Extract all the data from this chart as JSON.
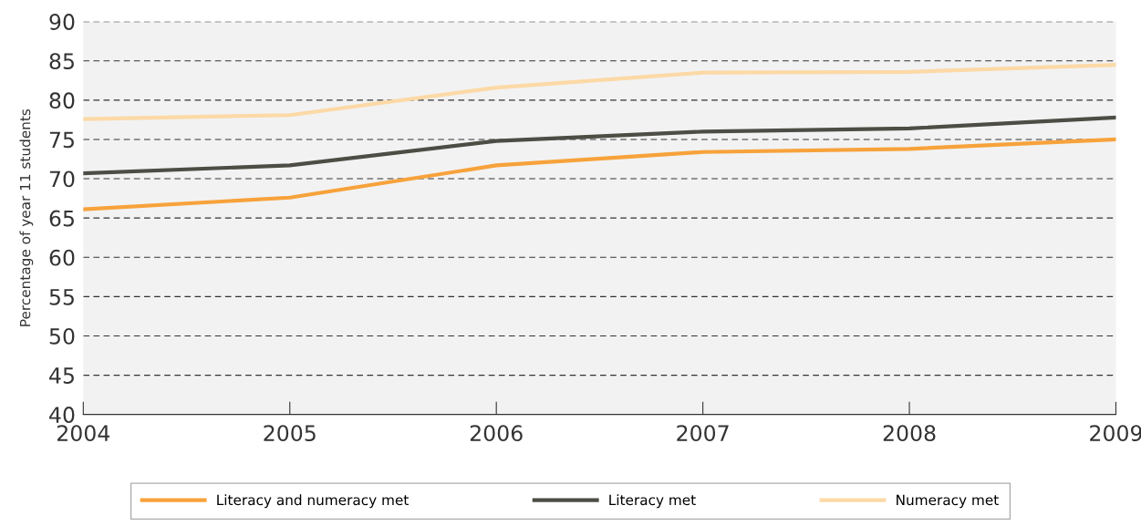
{
  "chart_data": {
    "type": "line",
    "ylabel": "Percentage of year 11 students",
    "x": [
      2004,
      2005,
      2006,
      2007,
      2008,
      2009
    ],
    "series": [
      {
        "name": "Literacy and numeracy met",
        "color": "#f7a23b",
        "values": [
          66.1,
          67.6,
          71.7,
          73.4,
          73.8,
          75.0
        ]
      },
      {
        "name": "Literacy met",
        "color": "#4d4d45",
        "values": [
          70.7,
          71.7,
          74.8,
          76.0,
          76.4,
          77.8
        ]
      },
      {
        "name": "Numeracy met",
        "color": "#fcd9a6",
        "values": [
          77.6,
          78.1,
          81.6,
          83.5,
          83.6,
          84.5
        ]
      }
    ],
    "xlim": [
      2004,
      2009
    ],
    "xticks": [
      2004,
      2005,
      2006,
      2007,
      2008,
      2009
    ],
    "ylim": [
      40,
      90
    ],
    "yticks": [
      40,
      45,
      50,
      55,
      60,
      65,
      70,
      75,
      80,
      85,
      90
    ],
    "grid": "y",
    "legend": "bottom",
    "marker": "none",
    "line_style": "solid"
  }
}
